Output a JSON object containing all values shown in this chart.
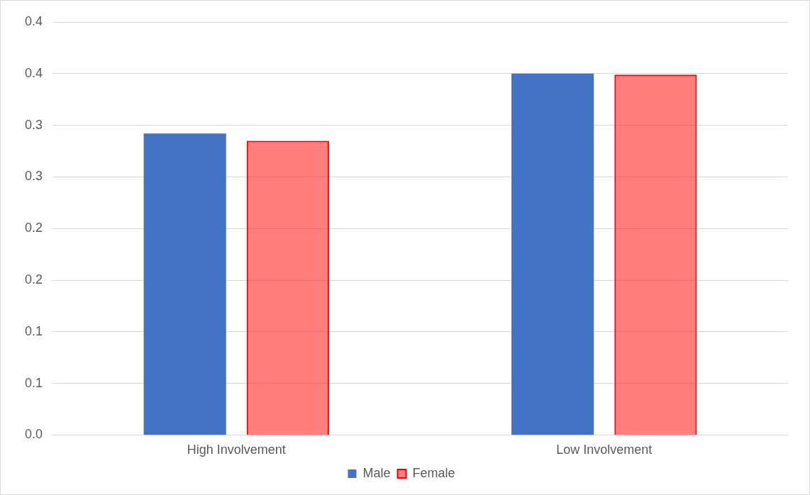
{
  "chart_data": {
    "type": "bar",
    "categories": [
      "High Involvement",
      "Low Involvement"
    ],
    "series": [
      {
        "name": "Male",
        "color": "#4472c4",
        "values": [
          0.292,
          0.35
        ]
      },
      {
        "name": "Female",
        "color": "#ff0000",
        "values": [
          0.285,
          0.349
        ]
      }
    ],
    "ylim": [
      0,
      0.4
    ],
    "yticks": [
      {
        "value": 0,
        "label": "0.0"
      },
      {
        "value": 0.05,
        "label": "0.1"
      },
      {
        "value": 0.1,
        "label": "0.1"
      },
      {
        "value": 0.15,
        "label": "0.2"
      },
      {
        "value": 0.2,
        "label": "0.2"
      },
      {
        "value": 0.25,
        "label": "0.3"
      },
      {
        "value": 0.3,
        "label": "0.3"
      },
      {
        "value": 0.35,
        "label": "0.4"
      },
      {
        "value": 0.4,
        "label": "0.4"
      }
    ],
    "grid": "y",
    "legend": "bottom"
  }
}
